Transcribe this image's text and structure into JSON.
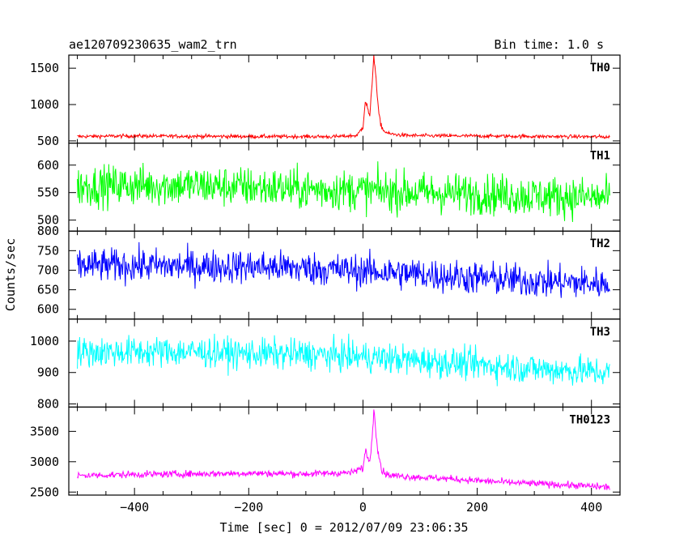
{
  "header": {
    "title": "ae120709230635_wam2_trn",
    "bin_time": "Bin time: 1.0 s"
  },
  "chart_data": {
    "type": "line",
    "title": "ae120709230635_wam2_trn",
    "xlabel": "Time [sec] 0 = 2012/07/09 23:06:35",
    "ylabel": "Counts/sec",
    "xlim": [
      -515,
      450
    ],
    "x_ticks": [
      -400,
      -200,
      0,
      200,
      400
    ],
    "data_range": [
      -500,
      432
    ],
    "bin_seconds": 1.0,
    "grid": false,
    "legend": "none",
    "panels": [
      {
        "name": "TH0",
        "color": "#ff0000",
        "ylim": [
          470,
          1680
        ],
        "ticks": [
          500,
          1000,
          1500
        ],
        "points": [
          [
            -500,
            560
          ],
          [
            -450,
            565
          ],
          [
            -400,
            568
          ],
          [
            -350,
            565
          ],
          [
            -300,
            565
          ],
          [
            -250,
            562
          ],
          [
            -200,
            562
          ],
          [
            -150,
            560
          ],
          [
            -100,
            560
          ],
          [
            -50,
            558
          ],
          [
            -10,
            575
          ],
          [
            0,
            700
          ],
          [
            4,
            1050
          ],
          [
            8,
            960
          ],
          [
            12,
            820
          ],
          [
            16,
            1300
          ],
          [
            19,
            1680
          ],
          [
            22,
            1450
          ],
          [
            26,
            1000
          ],
          [
            30,
            760
          ],
          [
            36,
            640
          ],
          [
            45,
            600
          ],
          [
            60,
            585
          ],
          [
            80,
            575
          ],
          [
            120,
            570
          ],
          [
            200,
            568
          ],
          [
            300,
            562
          ],
          [
            350,
            560
          ],
          [
            432,
            555
          ]
        ],
        "noise": 18
      },
      {
        "name": "TH1",
        "color": "#00ff00",
        "ylim": [
          480,
          640
        ],
        "ticks": [
          500,
          550,
          600
        ],
        "points": [
          [
            -500,
            562
          ],
          [
            -400,
            563
          ],
          [
            -300,
            563
          ],
          [
            -200,
            560
          ],
          [
            -100,
            556
          ],
          [
            0,
            554
          ],
          [
            100,
            550
          ],
          [
            200,
            548
          ],
          [
            300,
            544
          ],
          [
            432,
            540
          ]
        ],
        "noise": 26
      },
      {
        "name": "TH2",
        "color": "#0000ff",
        "ylim": [
          575,
          800
        ],
        "ticks": [
          600,
          650,
          700,
          750,
          800
        ],
        "points": [
          [
            -500,
            712
          ],
          [
            -400,
            712
          ],
          [
            -300,
            710
          ],
          [
            -200,
            710
          ],
          [
            -100,
            705
          ],
          [
            0,
            698
          ],
          [
            100,
            690
          ],
          [
            200,
            680
          ],
          [
            300,
            672
          ],
          [
            432,
            665
          ]
        ],
        "noise": 30
      },
      {
        "name": "TH3",
        "color": "#00ffff",
        "ylim": [
          790,
          1070
        ],
        "ticks": [
          800,
          900,
          1000
        ],
        "points": [
          [
            -500,
            965
          ],
          [
            -400,
            966
          ],
          [
            -300,
            966
          ],
          [
            -200,
            960
          ],
          [
            -100,
            958
          ],
          [
            0,
            950
          ],
          [
            100,
            938
          ],
          [
            200,
            925
          ],
          [
            300,
            912
          ],
          [
            432,
            900
          ]
        ],
        "noise": 34
      },
      {
        "name": "TH0123",
        "color": "#ff00ff",
        "ylim": [
          2450,
          3900
        ],
        "ticks": [
          2500,
          3000,
          3500
        ],
        "points": [
          [
            -500,
            2770
          ],
          [
            -400,
            2790
          ],
          [
            -300,
            2800
          ],
          [
            -200,
            2810
          ],
          [
            -100,
            2800
          ],
          [
            -20,
            2820
          ],
          [
            0,
            2900
          ],
          [
            5,
            3200
          ],
          [
            10,
            3000
          ],
          [
            14,
            3150
          ],
          [
            17,
            3500
          ],
          [
            19,
            3900
          ],
          [
            22,
            3600
          ],
          [
            27,
            3150
          ],
          [
            33,
            2850
          ],
          [
            45,
            2780
          ],
          [
            70,
            2760
          ],
          [
            150,
            2720
          ],
          [
            250,
            2660
          ],
          [
            350,
            2620
          ],
          [
            432,
            2580
          ]
        ],
        "noise": 40
      }
    ]
  }
}
